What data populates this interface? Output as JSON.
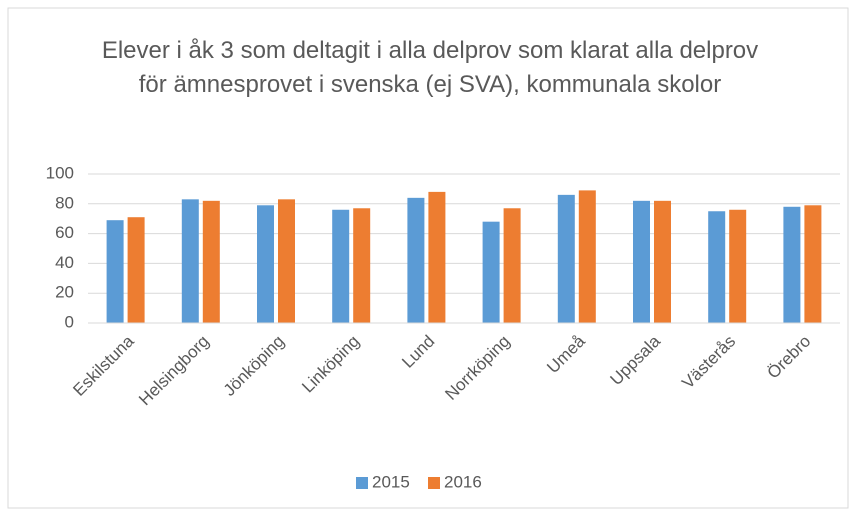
{
  "chart_data": {
    "type": "bar",
    "title": "Elever i åk 3 som deltagit i alla delprov som klarat alla delprov för ämnesprovet i svenska (ej SVA), kommunala skolor",
    "categories": [
      "Eskilstuna",
      "Helsingborg",
      "Jönköping",
      "Linköping",
      "Lund",
      "Norrköping",
      "Umeå",
      "Uppsala",
      "Västerås",
      "Örebro"
    ],
    "series": [
      {
        "name": "2015",
        "color": "#5b9bd5",
        "values": [
          69,
          83,
          79,
          76,
          84,
          68,
          86,
          82,
          75,
          78
        ]
      },
      {
        "name": "2016",
        "color": "#ed7d31",
        "values": [
          71,
          82,
          83,
          77,
          88,
          77,
          89,
          82,
          76,
          79
        ]
      }
    ],
    "ylim": [
      0,
      100
    ],
    "yticks": [
      0,
      20,
      40,
      60,
      80,
      100
    ],
    "grid": true,
    "legend": "bottom"
  }
}
